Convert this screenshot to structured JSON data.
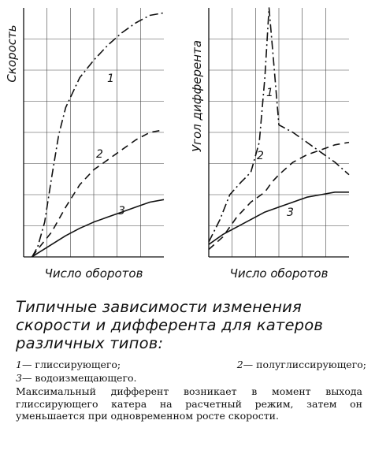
{
  "chart_data": [
    {
      "type": "line",
      "ylabel": "Скорость",
      "xlabel": "Число оборотов",
      "xlim": [
        0,
        10
      ],
      "ylim": [
        0,
        10
      ],
      "grid": true,
      "series": [
        {
          "name": "1",
          "style": "dash-dot",
          "x": [
            0.6,
            1.0,
            1.5,
            2.0,
            2.5,
            3.0,
            4.0,
            5.0,
            6.0,
            7.0,
            8.0,
            9.0,
            10.0
          ],
          "y": [
            0.0,
            0.4,
            1.4,
            3.2,
            4.9,
            6.0,
            7.2,
            7.9,
            8.5,
            9.0,
            9.4,
            9.7,
            9.8
          ]
        },
        {
          "name": "2",
          "style": "dashed",
          "x": [
            0.6,
            1.0,
            2.0,
            3.0,
            4.0,
            5.0,
            6.0,
            7.0,
            8.0,
            9.0,
            10.0
          ],
          "y": [
            0.0,
            0.3,
            1.0,
            2.0,
            2.9,
            3.5,
            3.9,
            4.3,
            4.7,
            5.0,
            5.1
          ]
        },
        {
          "name": "3",
          "style": "solid",
          "x": [
            0.6,
            1.0,
            2.0,
            3.0,
            4.0,
            5.0,
            6.0,
            7.0,
            8.0,
            9.0,
            10.0
          ],
          "y": [
            0.0,
            0.15,
            0.5,
            0.85,
            1.15,
            1.4,
            1.6,
            1.8,
            2.0,
            2.2,
            2.3
          ]
        }
      ]
    },
    {
      "type": "line",
      "ylabel": "Угол дифферента",
      "xlabel": "Число оборотов",
      "xlim": [
        0,
        10
      ],
      "ylim": [
        0,
        10
      ],
      "grid": true,
      "series": [
        {
          "name": "1",
          "style": "dash-dot",
          "x": [
            0.0,
            0.8,
            1.5,
            2.3,
            3.0,
            3.6,
            4.0,
            4.3,
            4.6,
            5.0,
            6.0,
            7.0,
            8.0,
            9.0,
            10.0
          ],
          "y": [
            0.6,
            1.5,
            2.5,
            3.0,
            3.4,
            4.6,
            7.2,
            10.0,
            8.0,
            5.3,
            5.0,
            4.6,
            4.2,
            3.8,
            3.3
          ]
        },
        {
          "name": "2",
          "style": "dashed",
          "x": [
            0.0,
            1.0,
            2.0,
            3.0,
            4.0,
            4.5,
            5.0,
            6.0,
            7.0,
            8.0,
            9.0,
            10.0
          ],
          "y": [
            0.3,
            0.8,
            1.6,
            2.2,
            2.6,
            3.0,
            3.3,
            3.8,
            4.1,
            4.3,
            4.5,
            4.6
          ]
        },
        {
          "name": "3",
          "style": "solid",
          "x": [
            0.0,
            1.0,
            2.0,
            3.0,
            4.0,
            5.0,
            6.0,
            7.0,
            8.0,
            9.0,
            10.0
          ],
          "y": [
            0.5,
            0.9,
            1.2,
            1.5,
            1.8,
            2.0,
            2.2,
            2.4,
            2.5,
            2.6,
            2.6
          ]
        }
      ]
    }
  ],
  "caption": {
    "title": "Типичные зависимости изменения скорости и дифферента для катеров различных типов:",
    "legend": [
      {
        "num": "1",
        "text": "— глиссирующего;"
      },
      {
        "num": "2",
        "text": "— полуглиссирующего;"
      },
      {
        "num": "3",
        "text": "— водоизмещающего."
      }
    ],
    "note": "Максимальный дифферент возникает в момент выхода глиссирующего катера на расчетный режим, затем он уменьшается при одновременном росте скорости."
  }
}
